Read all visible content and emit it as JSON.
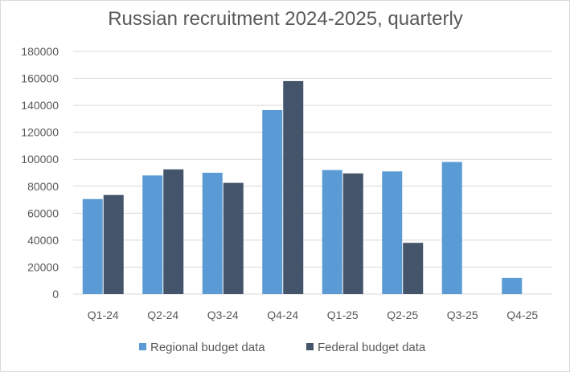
{
  "chart_data": {
    "type": "bar",
    "title": "Russian recruitment 2024-2025, quarterly",
    "xlabel": "",
    "ylabel": "",
    "categories": [
      "Q1-24",
      "Q2-24",
      "Q3-24",
      "Q4-24",
      "Q1-25",
      "Q2-25",
      "Q3-25",
      "Q4-25"
    ],
    "series": [
      {
        "name": "Regional budget data",
        "color": "#5b9bd5",
        "values": [
          70500,
          88000,
          90000,
          136500,
          92000,
          91000,
          98000,
          12000
        ]
      },
      {
        "name": "Federal budget data",
        "color": "#44546a",
        "values": [
          73500,
          92500,
          82500,
          158000,
          89500,
          38000,
          null,
          null
        ]
      }
    ],
    "ylim": [
      0,
      180000
    ],
    "yticks": [
      "0",
      "20000",
      "40000",
      "60000",
      "80000",
      "100000",
      "120000",
      "140000",
      "160000",
      "180000"
    ],
    "grid": true,
    "legend_position": "bottom"
  }
}
